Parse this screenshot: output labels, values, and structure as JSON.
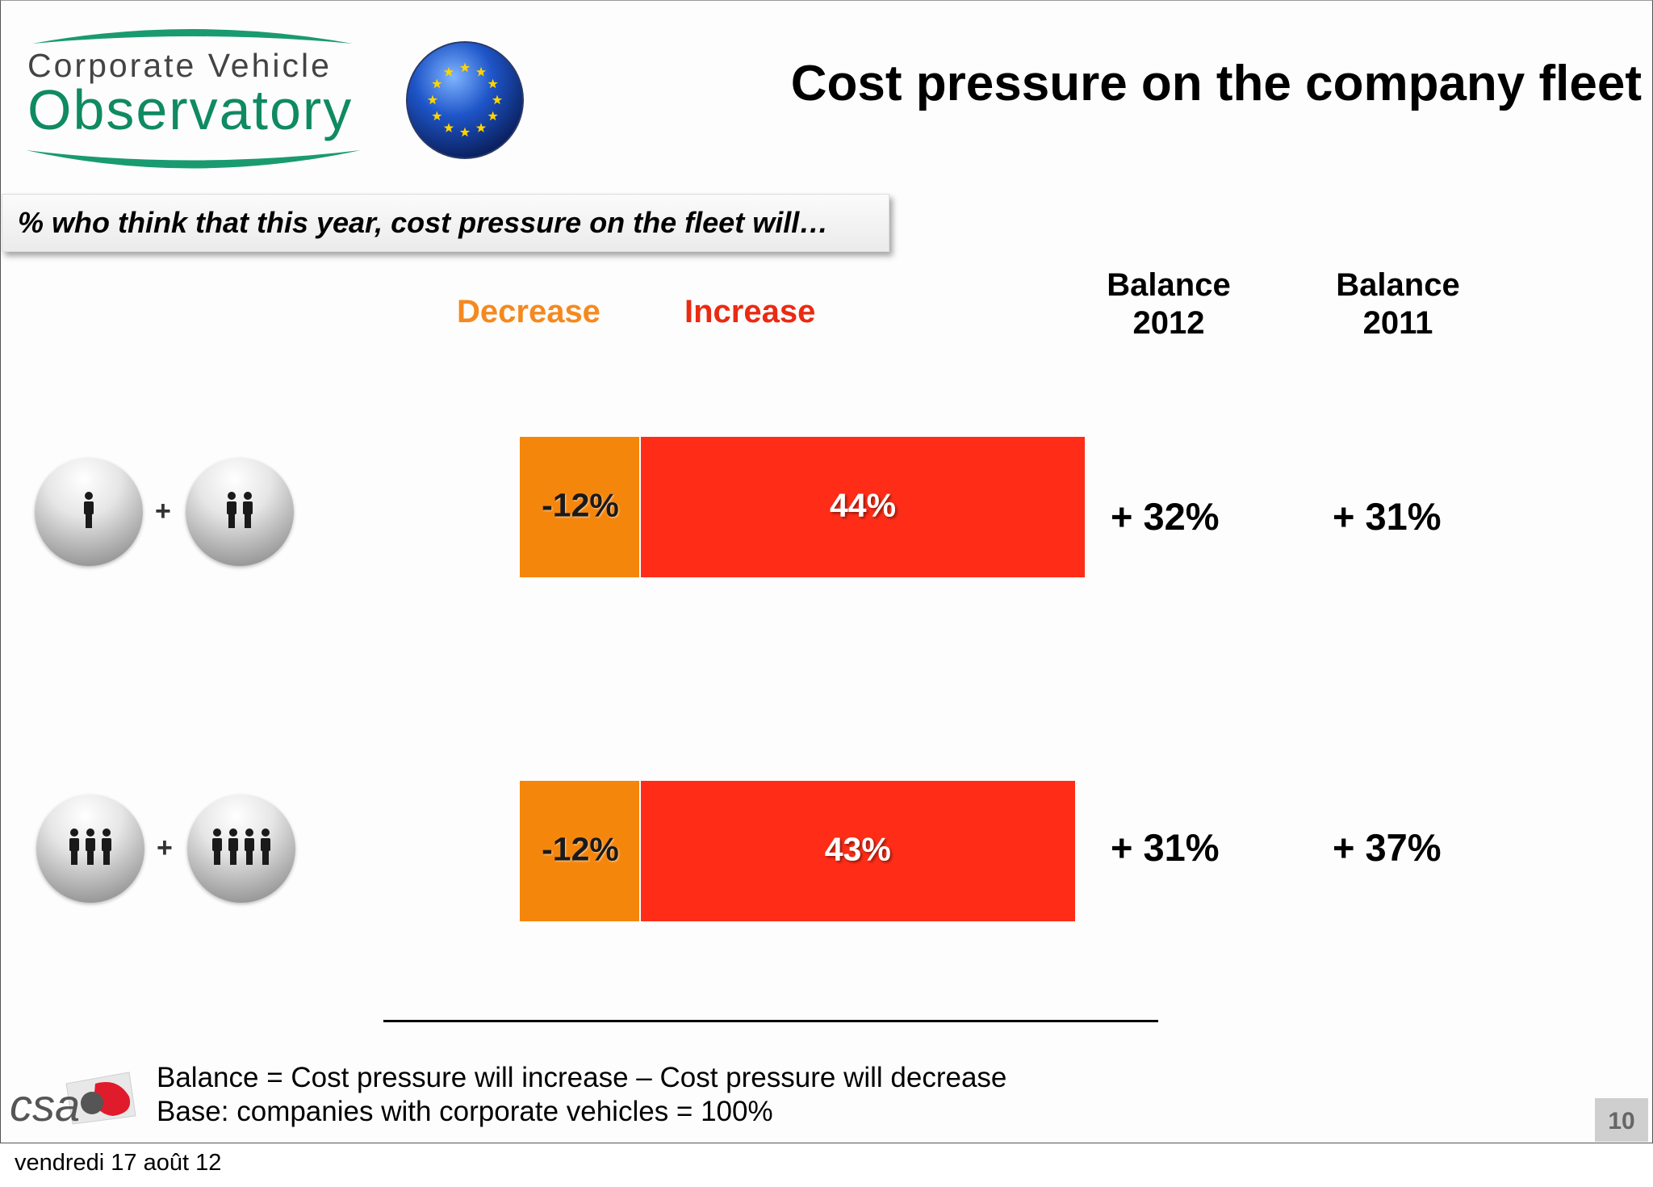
{
  "logo": {
    "line1": "Corporate Vehicle",
    "line2": "Observatory"
  },
  "title": "Cost pressure on the company fleet",
  "question": "% who think that this year, cost pressure on the fleet will…",
  "headers": {
    "decrease": "Decrease",
    "increase": "Increase",
    "balance_2012": "Balance 2012",
    "balance_2011": "Balance 2011"
  },
  "colors": {
    "decrease": "#f5860c",
    "increase": "#ff2d17",
    "logo_green": "#0f8a62"
  },
  "chart_data": {
    "type": "bar",
    "categories": [
      "Companies with 1 to 2 people icons",
      "Companies with 3 to 4 people icons"
    ],
    "series": [
      {
        "name": "Decrease",
        "values": [
          -12,
          -12
        ],
        "labels": [
          "-12%",
          "-12%"
        ]
      },
      {
        "name": "Increase",
        "values": [
          44,
          43
        ],
        "labels": [
          "44%",
          "43%"
        ]
      }
    ],
    "balance_2012": [
      "+ 32%",
      "+ 31%"
    ],
    "balance_2011": [
      "+ 31%",
      "+ 37%"
    ]
  },
  "rows": [
    {
      "icons": "one-plus-two-people",
      "dec_label": "-12%",
      "inc_label": "44%",
      "bal2012": "+ 32%",
      "bal2011": "+ 31%"
    },
    {
      "icons": "three-plus-four-people",
      "dec_label": "-12%",
      "inc_label": "43%",
      "bal2012": "+ 31%",
      "bal2011": "+ 37%"
    }
  ],
  "plus_sign": "+",
  "footer": {
    "csa_logo_text": "csa",
    "note1": "Balance = Cost pressure will increase – Cost pressure will decrease",
    "note2": "Base: companies with corporate vehicles = 100%"
  },
  "page_number": "10",
  "date": "vendredi 17 août 12"
}
